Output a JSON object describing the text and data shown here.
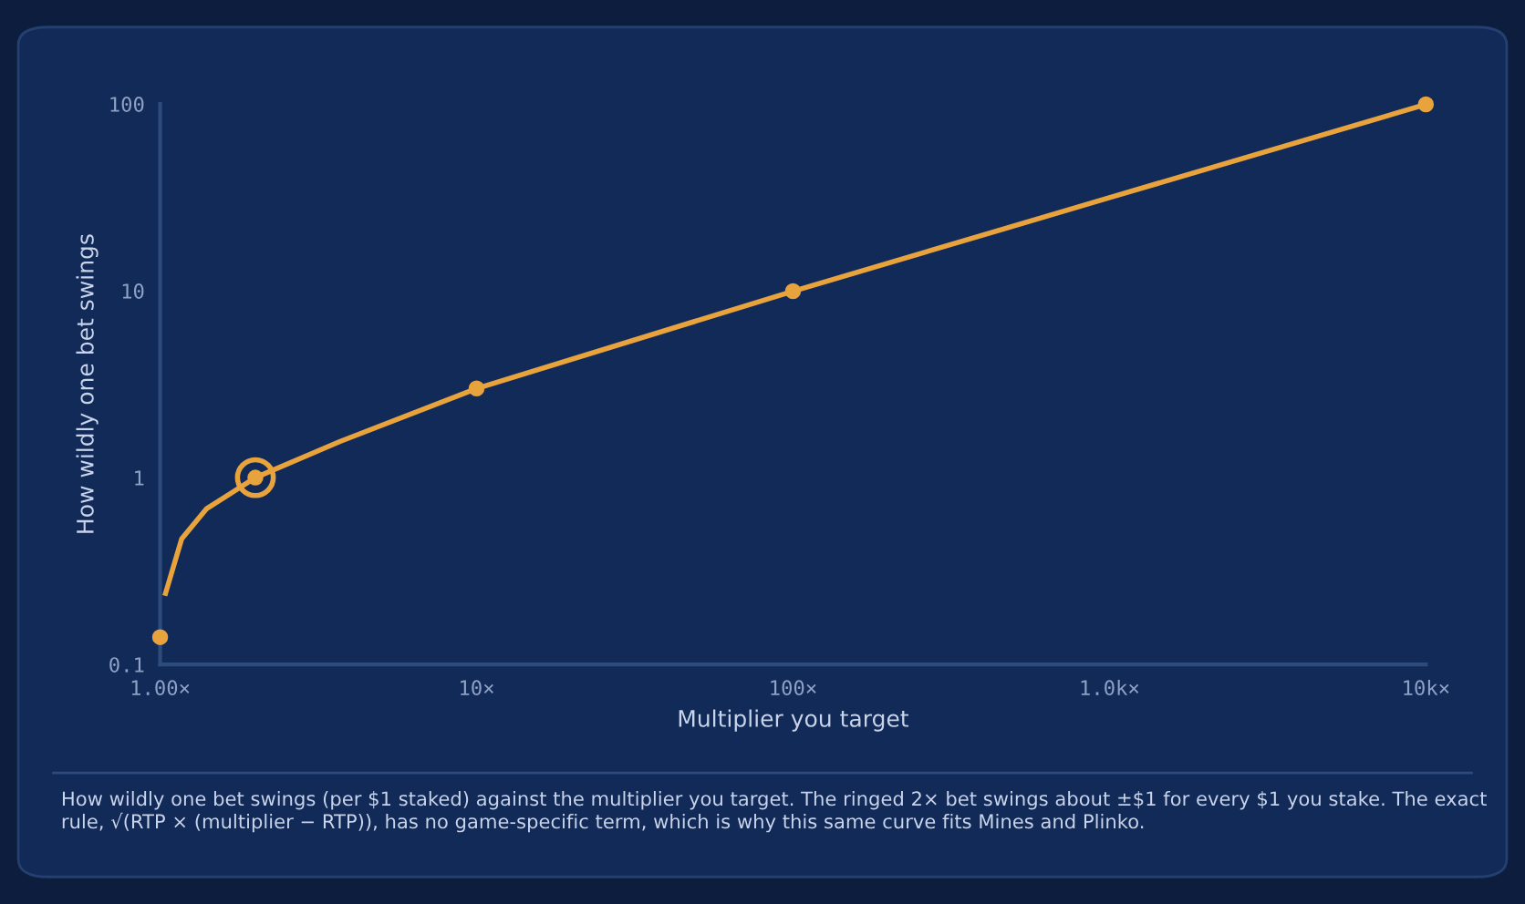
{
  "chart_data": {
    "type": "line",
    "xlabel": "Multiplier you target",
    "ylabel": "How wildly one bet swings",
    "log": "xy",
    "grid": false,
    "xlim": [
      1,
      10000
    ],
    "ylim": [
      0.1,
      100
    ],
    "xticks": [
      {
        "value": 1,
        "label": "1.00×"
      },
      {
        "value": 10,
        "label": "10×"
      },
      {
        "value": 100,
        "label": "100×"
      },
      {
        "value": 1000,
        "label": "1.0k×"
      },
      {
        "value": 10000,
        "label": "10k×"
      }
    ],
    "yticks": [
      0.1,
      1,
      10,
      100
    ],
    "series": [
      {
        "color": "#e8a33d",
        "marker": "none",
        "x": [
          1.04,
          1.17,
          1.4,
          2,
          3.7,
          10,
          100,
          1000,
          10000
        ],
        "values": [
          0.24,
          0.47,
          0.68,
          1,
          1.56,
          3,
          9.95,
          31.5,
          99.5
        ]
      },
      {
        "type": "scatter",
        "color": "#e8a33d",
        "marker": "circle",
        "x": [
          1,
          2,
          10,
          100,
          10000
        ],
        "values": [
          0.14,
          1,
          3,
          9.95,
          99.5
        ]
      },
      {
        "type": "bubble",
        "color": "#e8a33d",
        "x": [
          2
        ],
        "values": [
          1
        ],
        "sizes": [
          1
        ]
      }
    ],
    "annotations": [
      "How wildly one bet swings (per $1 staked) against the multiplier you target. The ringed 2× bet swings about ±$1 for every $1 you stake. The exact rule, √(RTP × (multiplier − RTP)), has no game-specific term, which is why this same curve fits Mines and Plinko."
    ]
  }
}
